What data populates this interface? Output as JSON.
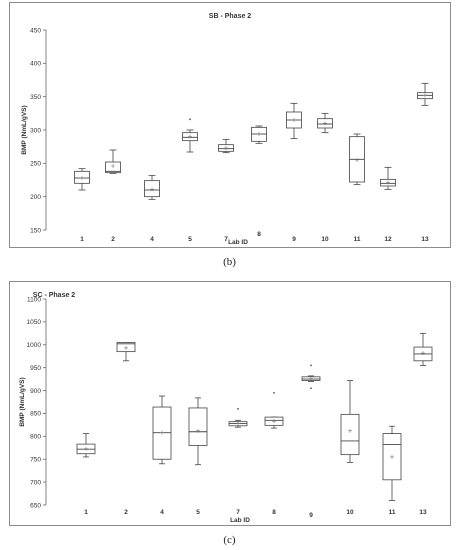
{
  "figure": {
    "caption_b": "(b)",
    "caption_c": "(c)"
  },
  "chart_data": [
    {
      "type": "box",
      "title": "SB - Phase 2",
      "xlabel": "Lab ID",
      "ylabel": "BMP (NmL/gVS)",
      "ylim": [
        150,
        450
      ],
      "yticks": [
        150,
        200,
        250,
        300,
        350,
        400,
        450
      ],
      "grid": false,
      "box_color": "#444444",
      "mean_marker": "+",
      "categories": [
        "1",
        "2",
        "4",
        "5",
        "7",
        "8",
        "9",
        "10",
        "11",
        "12",
        "13"
      ],
      "boxes": [
        {
          "label": "1",
          "min": 210,
          "q1": 220,
          "median": 228,
          "q3": 238,
          "max": 242,
          "mean": 228,
          "outliers": []
        },
        {
          "label": "2",
          "min": 235,
          "q1": 236,
          "median": 238,
          "q3": 252,
          "max": 270,
          "mean": 246,
          "outliers": []
        },
        {
          "label": "4",
          "min": 196,
          "q1": 200,
          "median": 210,
          "q3": 224,
          "max": 232,
          "mean": 211,
          "outliers": []
        },
        {
          "label": "5",
          "min": 267,
          "q1": 284,
          "median": 289,
          "q3": 296,
          "max": 300,
          "mean": 290,
          "outliers": [
            316
          ]
        },
        {
          "label": "7",
          "min": 266,
          "q1": 268,
          "median": 272,
          "q3": 278,
          "max": 286,
          "mean": 273,
          "outliers": []
        },
        {
          "label": "8",
          "min": 280,
          "q1": 283,
          "median": 294,
          "q3": 304,
          "max": 306,
          "mean": 294,
          "outliers": []
        },
        {
          "label": "9",
          "min": 287,
          "q1": 303,
          "median": 315,
          "q3": 327,
          "max": 340,
          "mean": 315,
          "outliers": []
        },
        {
          "label": "10",
          "min": 296,
          "q1": 303,
          "median": 309,
          "q3": 317,
          "max": 325,
          "mean": 310,
          "outliers": []
        },
        {
          "label": "11",
          "min": 218,
          "q1": 222,
          "median": 256,
          "q3": 290,
          "max": 294,
          "mean": 255,
          "outliers": []
        },
        {
          "label": "12",
          "min": 211,
          "q1": 216,
          "median": 220,
          "q3": 226,
          "max": 244,
          "mean": 221,
          "outliers": []
        },
        {
          "label": "13",
          "min": 337,
          "q1": 347,
          "median": 352,
          "q3": 356,
          "max": 370,
          "mean": 352,
          "outliers": []
        }
      ]
    },
    {
      "type": "box",
      "title": "SC - Phase 2",
      "xlabel": "Lab ID",
      "ylabel": "BMP (NmL/gVS)",
      "ylim": [
        650,
        1100
      ],
      "yticks": [
        650,
        700,
        750,
        800,
        850,
        900,
        950,
        1000,
        1050,
        1100
      ],
      "grid": false,
      "box_color": "#444444",
      "mean_marker": "+",
      "categories": [
        "1",
        "2",
        "4",
        "5",
        "7",
        "8",
        "9",
        "10",
        "11",
        "13"
      ],
      "boxes": [
        {
          "label": "1",
          "min": 755,
          "q1": 762,
          "median": 772,
          "q3": 783,
          "max": 806,
          "mean": 773,
          "outliers": []
        },
        {
          "label": "2",
          "min": 965,
          "q1": 985,
          "median": 1002,
          "q3": 1005,
          "max": 1005,
          "mean": 993,
          "outliers": []
        },
        {
          "label": "4",
          "min": 740,
          "q1": 750,
          "median": 808,
          "q3": 864,
          "max": 888,
          "mean": 808,
          "outliers": []
        },
        {
          "label": "5",
          "min": 738,
          "q1": 780,
          "median": 810,
          "q3": 862,
          "max": 884,
          "mean": 812,
          "outliers": []
        },
        {
          "label": "7",
          "min": 820,
          "q1": 823,
          "median": 828,
          "q3": 832,
          "max": 835,
          "mean": 828,
          "outliers": [
            860
          ]
        },
        {
          "label": "8",
          "min": 818,
          "q1": 824,
          "median": 835,
          "q3": 842,
          "max": 842,
          "mean": 833,
          "outliers": [
            895
          ]
        },
        {
          "label": "9",
          "min": 920,
          "q1": 922,
          "median": 925,
          "q3": 930,
          "max": 932,
          "mean": 926,
          "outliers": [
            955,
            905
          ]
        },
        {
          "label": "10",
          "min": 743,
          "q1": 760,
          "median": 790,
          "q3": 848,
          "max": 922,
          "mean": 812,
          "outliers": []
        },
        {
          "label": "11",
          "min": 660,
          "q1": 705,
          "median": 782,
          "q3": 806,
          "max": 822,
          "mean": 755,
          "outliers": []
        },
        {
          "label": "13",
          "min": 955,
          "q1": 965,
          "median": 980,
          "q3": 995,
          "max": 1025,
          "mean": 982,
          "outliers": []
        }
      ]
    }
  ]
}
